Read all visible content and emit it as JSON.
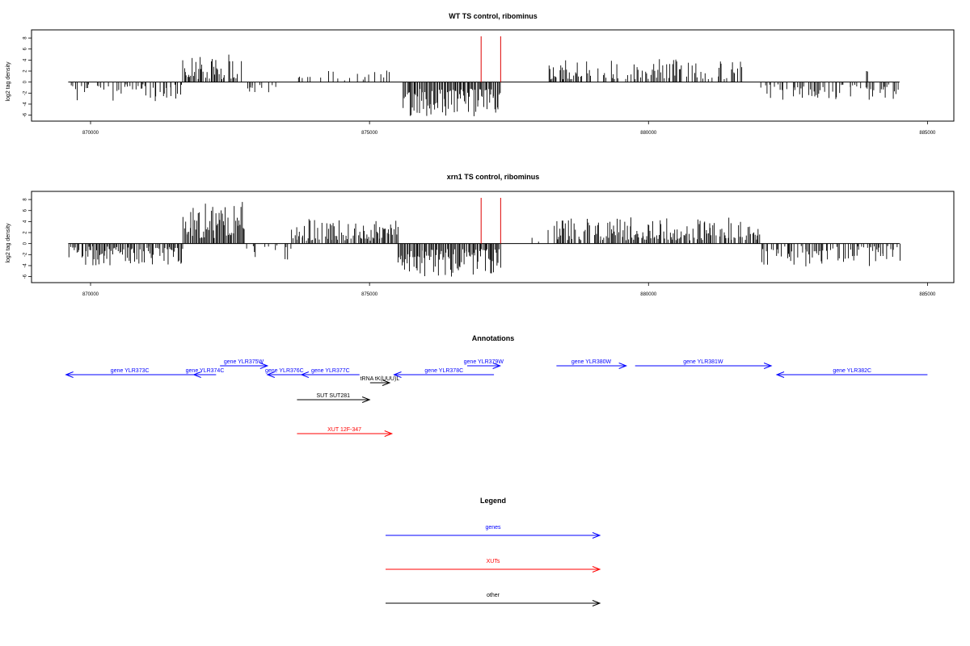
{
  "colors": {
    "gene": "#0000ff",
    "xut": "#ff0000",
    "other": "#000000",
    "marker": "#dd0000",
    "bar": "#000000"
  },
  "panels": [
    {
      "title": "WT TS control, ribominus",
      "ylabel": "log2 tag density",
      "xlim": [
        869000,
        885400
      ],
      "ylim": [
        -6.5,
        8.6
      ],
      "yticks": [
        8,
        6,
        4,
        2,
        0,
        -2,
        -4,
        -6
      ],
      "xticks": [
        870000,
        875000,
        880000,
        885000
      ],
      "xtick_labels": [
        "870000",
        "875000",
        "880000",
        "885000"
      ],
      "baseline": [
        869600,
        884500
      ],
      "markers": [
        877000,
        877350
      ],
      "segments": [
        {
          "start": 869600,
          "end": 871650,
          "sign": -1,
          "min": 0.4,
          "max": 3.5,
          "density": 0.45,
          "seed": 11
        },
        {
          "start": 871650,
          "end": 872700,
          "sign": 1,
          "min": 0.5,
          "max": 5.0,
          "density": 0.75,
          "seed": 12
        },
        {
          "start": 872700,
          "end": 873300,
          "sign": -1,
          "min": 0.3,
          "max": 2.0,
          "density": 0.3,
          "seed": 13
        },
        {
          "start": 873600,
          "end": 875600,
          "sign": 1,
          "min": 0.3,
          "max": 2.2,
          "density": 0.15,
          "seed": 14
        },
        {
          "start": 875600,
          "end": 877350,
          "sign": -1,
          "min": 1.2,
          "max": 6.2,
          "density": 1.0,
          "seed": 15
        },
        {
          "start": 878200,
          "end": 881700,
          "sign": 1,
          "min": 0.5,
          "max": 4.2,
          "density": 0.5,
          "seed": 16
        },
        {
          "start": 881900,
          "end": 884500,
          "sign": -1,
          "min": 0.4,
          "max": 3.2,
          "density": 0.45,
          "seed": 17
        },
        {
          "start": 883900,
          "end": 884000,
          "sign": 1,
          "min": 1.5,
          "max": 2.3,
          "density": 0.2,
          "seed": 18
        }
      ]
    },
    {
      "title": "xrn1 TS control, ribominus",
      "ylabel": "log2 tag density",
      "xlim": [
        869000,
        885400
      ],
      "ylim": [
        -6.5,
        8.6
      ],
      "yticks": [
        8,
        6,
        4,
        2,
        0,
        -2,
        -4,
        -6
      ],
      "xticks": [
        870000,
        875000,
        880000,
        885000
      ],
      "xtick_labels": [
        "870000",
        "875000",
        "880000",
        "885000"
      ],
      "baseline": [
        869600,
        884500
      ],
      "markers": [
        877000,
        877350
      ],
      "segments": [
        {
          "start": 869600,
          "end": 871650,
          "sign": -1,
          "min": 0.5,
          "max": 4.0,
          "density": 0.9,
          "seed": 21
        },
        {
          "start": 871650,
          "end": 872750,
          "sign": 1,
          "min": 1.0,
          "max": 8.0,
          "density": 1.0,
          "seed": 22
        },
        {
          "start": 872750,
          "end": 873600,
          "sign": -1,
          "min": 0.3,
          "max": 3.0,
          "density": 0.35,
          "seed": 23
        },
        {
          "start": 873600,
          "end": 875500,
          "sign": 1,
          "min": 0.5,
          "max": 4.5,
          "density": 0.85,
          "seed": 24
        },
        {
          "start": 875500,
          "end": 877350,
          "sign": -1,
          "min": 1.0,
          "max": 6.0,
          "density": 1.0,
          "seed": 25
        },
        {
          "start": 877400,
          "end": 878200,
          "sign": 1,
          "min": 0.3,
          "max": 2.5,
          "density": 0.15,
          "seed": 26
        },
        {
          "start": 878200,
          "end": 882000,
          "sign": 1,
          "min": 0.6,
          "max": 4.8,
          "density": 0.8,
          "seed": 27
        },
        {
          "start": 882000,
          "end": 884500,
          "sign": -1,
          "min": 0.4,
          "max": 4.5,
          "density": 0.6,
          "seed": 28
        }
      ]
    }
  ],
  "annotations": {
    "title": "Annotations",
    "features": [
      {
        "label": "gene YLR373C",
        "type": "gene",
        "start": 869560,
        "end": 871850,
        "strand": "-",
        "row": 1
      },
      {
        "label": "gene YLR374C",
        "type": "gene",
        "start": 871850,
        "end": 872250,
        "strand": "-",
        "row": 1
      },
      {
        "label": "gene YLR375W",
        "type": "gene",
        "start": 872320,
        "end": 873170,
        "strand": "+",
        "row": 0
      },
      {
        "label": "gene YLR376C",
        "type": "gene",
        "start": 873170,
        "end": 873780,
        "strand": "-",
        "row": 1
      },
      {
        "label": "gene YLR377C",
        "type": "gene",
        "start": 873780,
        "end": 874820,
        "strand": "-",
        "row": 1
      },
      {
        "label": "tRNA tK(UUU)L",
        "type": "other",
        "start": 875010,
        "end": 875360,
        "strand": "+",
        "row": 2
      },
      {
        "label": "gene YLR378C",
        "type": "gene",
        "start": 875440,
        "end": 877230,
        "strand": "-",
        "row": 1
      },
      {
        "label": "gene YLR379W",
        "type": "gene",
        "start": 876750,
        "end": 877340,
        "strand": "+",
        "row": 0
      },
      {
        "label": "gene YLR380W",
        "type": "gene",
        "start": 878350,
        "end": 879600,
        "strand": "+",
        "row": 0
      },
      {
        "label": "gene YLR381W",
        "type": "gene",
        "start": 879760,
        "end": 882200,
        "strand": "+",
        "row": 0
      },
      {
        "label": "gene YLR382C",
        "type": "gene",
        "start": 882300,
        "end": 885000,
        "strand": "-",
        "row": 1
      },
      {
        "label": "SUT SUT281",
        "type": "other",
        "start": 873700,
        "end": 875000,
        "strand": "+",
        "row": 3
      },
      {
        "label": "XUT 12F-347",
        "type": "xut",
        "start": 873700,
        "end": 875400,
        "strand": "+",
        "row": 4
      }
    ]
  },
  "legend": {
    "title": "Legend",
    "items": [
      {
        "label": "genes",
        "type": "gene"
      },
      {
        "label": "XUTs",
        "type": "xut"
      },
      {
        "label": "other",
        "type": "other"
      }
    ]
  }
}
